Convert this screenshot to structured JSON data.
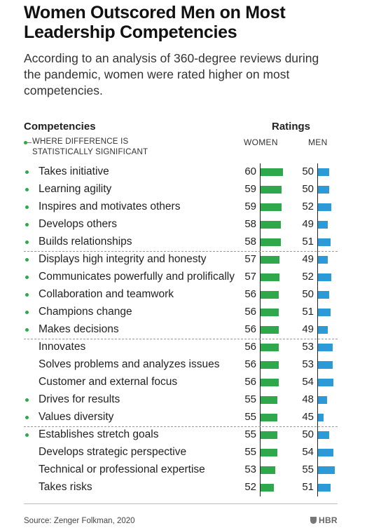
{
  "header": {
    "title": "Women Outscored Men on Most Leadership Competencies",
    "subtitle": "According to an analysis of 360-degree reviews during the pandemic, women were rated higher on most competencies."
  },
  "columns": {
    "competencies": "Competencies",
    "ratings": "Ratings",
    "legend_line1": "WHERE DIFFERENCE IS",
    "legend_line2": "STATISTICALLY SIGNIFICANT",
    "women": "WOMEN",
    "men": "MEN"
  },
  "footer": {
    "source": "Source: Zenger Folkman, 2020",
    "logo": "HBR"
  },
  "colors": {
    "women": "#2ea84a",
    "men": "#2b9ad6",
    "significant_marker": "#2ea84a"
  },
  "chart_data": {
    "type": "bar",
    "title": "Women Outscored Men on Most Leadership Competencies",
    "categories": [
      "Takes initiative",
      "Learning agility",
      "Inspires and motivates others",
      "Develops others",
      "Builds relationships",
      "Displays high integrity and honesty",
      "Communicates powerfully and prolifically",
      "Collaboration and teamwork",
      "Champions change",
      "Makes decisions",
      "Innovates",
      "Solves problems and analyzes issues",
      "Customer and external focus",
      "Drives for results",
      "Values diversity",
      "Establishes stretch goals",
      "Develops strategic perspective",
      "Technical or professional expertise",
      "Takes risks"
    ],
    "series": [
      {
        "name": "WOMEN",
        "values": [
          60,
          59,
          59,
          58,
          58,
          57,
          57,
          56,
          56,
          56,
          56,
          56,
          56,
          55,
          55,
          55,
          55,
          53,
          52
        ]
      },
      {
        "name": "MEN",
        "values": [
          50,
          50,
          52,
          49,
          51,
          49,
          52,
          50,
          51,
          49,
          53,
          53,
          54,
          48,
          45,
          50,
          54,
          55,
          51
        ]
      }
    ],
    "significant": [
      true,
      true,
      true,
      true,
      true,
      true,
      true,
      true,
      true,
      true,
      false,
      false,
      false,
      true,
      true,
      true,
      false,
      false,
      false
    ],
    "group_breaks_after": [
      4,
      9,
      14
    ],
    "xlabel": "",
    "ylabel": "Ratings"
  }
}
